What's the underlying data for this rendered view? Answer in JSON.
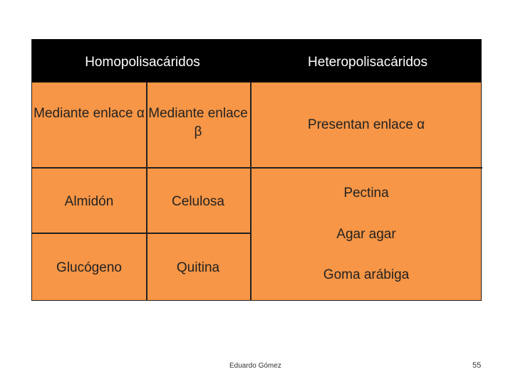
{
  "table": {
    "header": {
      "col1": "Homopolisacáridos",
      "col2": "Heteropolisacáridos"
    },
    "rows": [
      {
        "c1": "Mediante enlace α",
        "c2": "Mediante enlace β",
        "c3": "Presentan enlace α"
      },
      {
        "c1": "Almidón",
        "c2": "Celulosa",
        "c3": "Pectina"
      },
      {
        "c1": "",
        "c2": "",
        "c3": "Agar agar"
      },
      {
        "c1": "Glucógeno",
        "c2": "Quitina",
        "c3": "Goma arábiga"
      }
    ]
  },
  "footer": {
    "author": "Eduardo Gómez",
    "page_number": "55"
  },
  "colors": {
    "header_bg": "#000000",
    "cell_bg": "#f79646",
    "border": "#222222"
  }
}
